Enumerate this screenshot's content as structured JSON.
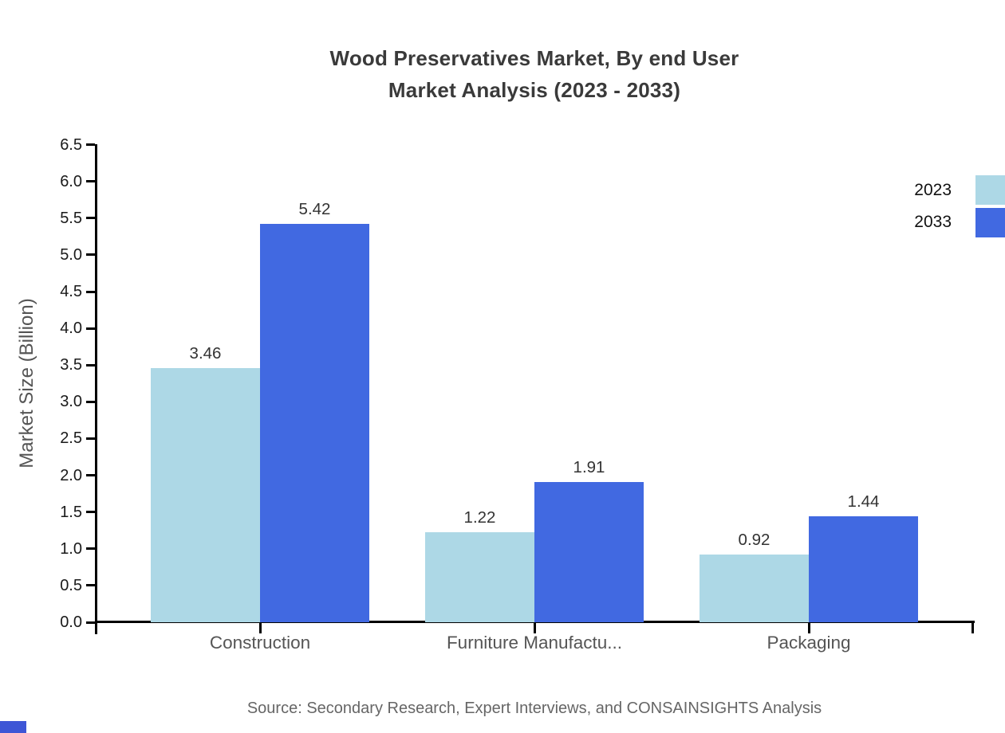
{
  "chart": {
    "title_line1": "Wood Preservatives Market, By end User",
    "title_line2": "Market Analysis (2023 - 2033)",
    "ylabel": "Market Size (Billion)",
    "source": "Source: Secondary Research, Expert Interviews, and CONSAINSIGHTS Analysis"
  },
  "chart_data": {
    "type": "bar",
    "title": "Wood Preservatives Market, By end User Market Analysis (2023 - 2033)",
    "categories": [
      "Construction",
      "Furniture Manufactu...",
      "Packaging"
    ],
    "series": [
      {
        "name": "2023",
        "color": "#ADD8E6",
        "values": [
          3.46,
          1.22,
          0.92
        ]
      },
      {
        "name": "2033",
        "color": "#4169E1",
        "values": [
          5.42,
          1.91,
          1.44
        ]
      }
    ],
    "xlabel": "",
    "ylabel": "Market Size (Billion)",
    "ylim": [
      0.0,
      6.5
    ],
    "ytick_step": 0.5,
    "grid": false,
    "legend_position": "top-right",
    "bar_value_labels": true
  },
  "legend": {
    "items": [
      {
        "label": "2023",
        "color": "#ADD8E6"
      },
      {
        "label": "2033",
        "color": "#4169E1"
      }
    ]
  },
  "colors": {
    "series_2023": "#ADD8E6",
    "series_2033": "#4169E1",
    "axis": "#000000",
    "title_text": "#3a3a3a",
    "tick_text": "#1a1a1a",
    "category_text": "#555555",
    "value_text": "#333333",
    "source_text": "#666666",
    "corner_mark": "#3E56D6"
  }
}
